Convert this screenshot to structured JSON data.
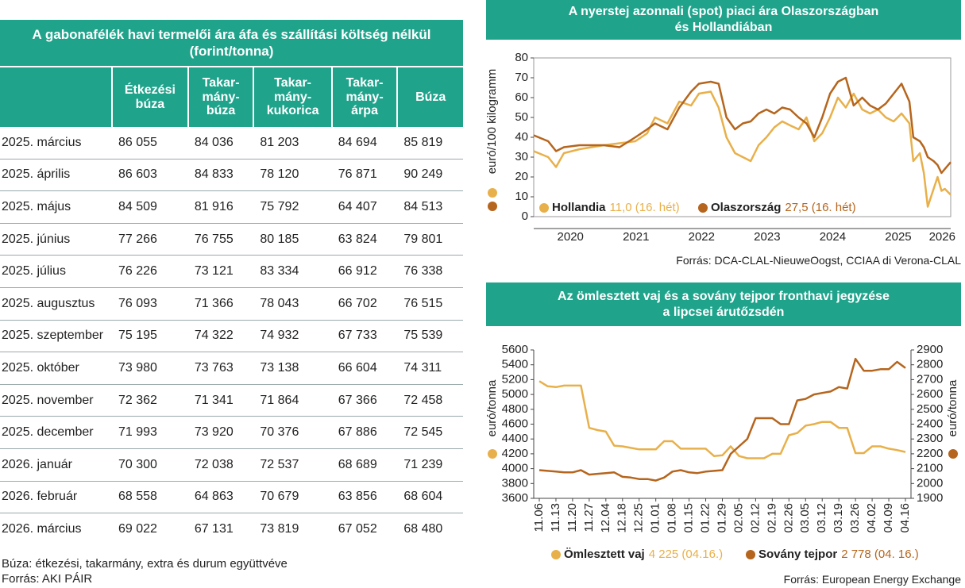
{
  "table": {
    "title": "A gabonafélék havi termelői ára áfa és szállítási költség nélkül (forint/tonna)",
    "columns": [
      "Étkezési\nbúza",
      "Takar-\nmány-\nbúza",
      "Takar-\nmány-\nkukorica",
      "Takar-\nmány-\nárpa",
      "Búza"
    ],
    "rows": [
      [
        "2025. március",
        "86 055",
        "84 036",
        "81 203",
        "84 694",
        "85 819"
      ],
      [
        "2025. április",
        "86 603",
        "84 833",
        "78 120",
        "76 871",
        "90 249"
      ],
      [
        "2025. május",
        "84 509",
        "81 916",
        "75 792",
        "64 407",
        "84 513"
      ],
      [
        "2025. június",
        "77 266",
        "76 755",
        "80 185",
        "63 824",
        "79 801"
      ],
      [
        "2025. július",
        "76 226",
        "73 121",
        "83 334",
        "66 912",
        "76 338"
      ],
      [
        "2025. augusztus",
        "76 093",
        "71 366",
        "78 043",
        "66 702",
        "76 515"
      ],
      [
        "2025. szeptember",
        "75 195",
        "74 322",
        "74 932",
        "67 733",
        "75 539"
      ],
      [
        "2025. október",
        "73 980",
        "73 763",
        "73 138",
        "66 604",
        "74 311"
      ],
      [
        "2025. november",
        "72 362",
        "71 341",
        "71 864",
        "67 366",
        "72 458"
      ],
      [
        "2025. december",
        "71 993",
        "73 920",
        "70 376",
        "67 886",
        "72 545"
      ],
      [
        "2026. január",
        "70 300",
        "72 038",
        "72 537",
        "68 689",
        "71 239"
      ],
      [
        "2026. február",
        "68 558",
        "64 863",
        "70 679",
        "63 856",
        "68 604"
      ],
      [
        "2026. március",
        "69 022",
        "67 131",
        "73 819",
        "67 052",
        "68 480"
      ]
    ],
    "notes": [
      "Búza: étkezési, takarmány, extra és durum együttvéve",
      "Forrás: AKI PÁIR"
    ]
  },
  "chart_data": [
    {
      "type": "line",
      "title": "A nyerstej azonnali (spot) piaci ára Olaszországban\nés Hollandiában",
      "y_label": "euró/100 kilogramm",
      "x": [
        2019.94,
        2020.16,
        2020.28,
        2020.4,
        2020.64,
        2021.01,
        2021.25,
        2021.49,
        2021.67,
        2021.79,
        2021.98,
        2022.16,
        2022.34,
        2022.46,
        2022.64,
        2022.76,
        2022.88,
        2023.01,
        2023.13,
        2023.25,
        2023.37,
        2023.49,
        2023.61,
        2023.73,
        2023.85,
        2023.98,
        2024.1,
        2024.22,
        2024.34,
        2024.46,
        2024.58,
        2024.7,
        2024.82,
        2024.95,
        2025.07,
        2025.19,
        2025.31,
        2025.43,
        2025.55,
        2025.67,
        2025.73,
        2025.83,
        2025.89,
        2025.95,
        2026.04,
        2026.1,
        2026.16,
        2026.21,
        2026.3
      ],
      "xlim": [
        2019.94,
        2026.3
      ],
      "xticks": [
        {
          "value": 2020.5,
          "label": "2020"
        },
        {
          "value": 2021.5,
          "label": "2021"
        },
        {
          "value": 2022.5,
          "label": "2022"
        },
        {
          "value": 2023.5,
          "label": "2023"
        },
        {
          "value": 2024.5,
          "label": "2024"
        },
        {
          "value": 2025.5,
          "label": "2025"
        },
        {
          "value": 2026.17,
          "label": "2026"
        }
      ],
      "ylim": [
        0,
        80
      ],
      "yticks": [
        0,
        10,
        20,
        30,
        40,
        50,
        60,
        70,
        80
      ],
      "series": [
        {
          "name": "Hollandia",
          "color": "#e8b04a",
          "latest": "11,0 (16. hét)",
          "values": [
            33,
            30,
            25,
            32,
            34,
            36,
            37,
            38,
            42,
            50,
            47,
            58,
            56,
            62,
            63,
            55,
            40,
            32,
            30,
            28,
            36,
            40,
            45,
            48,
            46,
            44,
            50,
            38,
            42,
            50,
            60,
            55,
            62,
            54,
            52,
            54,
            50,
            48,
            52,
            47,
            28,
            32,
            22,
            5,
            14,
            20,
            13,
            14,
            11
          ]
        },
        {
          "name": "Olaszország",
          "color": "#b5651d",
          "latest": "27,5 (16. hét)",
          "values": [
            41,
            38,
            33,
            35,
            36,
            36,
            35,
            40,
            44,
            47,
            44,
            55,
            63,
            67,
            68,
            67,
            50,
            44,
            47,
            48,
            52,
            54,
            52,
            55,
            54,
            50,
            47,
            40,
            50,
            62,
            68,
            70,
            56,
            60,
            56,
            54,
            57,
            62,
            67,
            58,
            40,
            38,
            35,
            30,
            28,
            26,
            22,
            24,
            27.5
          ]
        }
      ],
      "source": "Forrás: DCA-CLAL-NieuweOogst, CCIAA di Verona-CLAL"
    },
    {
      "type": "line",
      "title": "Az ömlesztett vaj és a sovány tejpor fronthavi jegyzése\na lipcsei árutőzsdén",
      "y_label": "euró/tonna",
      "y2_label": "euró/tonna",
      "categories": [
        "11.06",
        null,
        "11.13",
        null,
        "11.20",
        null,
        "11.27",
        null,
        "12.04",
        null,
        "12.18",
        null,
        "12.25",
        null,
        "01.01",
        null,
        "01.08",
        null,
        "01.15",
        null,
        "01.22",
        null,
        "01.29",
        null,
        "02.05",
        null,
        "02.12",
        null,
        "02.19",
        null,
        "02.26",
        null,
        "03.05",
        null,
        "03.12",
        null,
        "03.19",
        null,
        "03.26",
        null,
        "04.02",
        null,
        "04.09",
        null,
        "04.16"
      ],
      "ylim": [
        3600,
        5600
      ],
      "yticks": [
        3600,
        3800,
        4000,
        4200,
        4400,
        4600,
        4800,
        5000,
        5200,
        5400,
        5600
      ],
      "y2lim": [
        1900,
        2900
      ],
      "y2ticks": [
        1900,
        2000,
        2100,
        2200,
        2300,
        2400,
        2500,
        2600,
        2700,
        2800,
        2900
      ],
      "series": [
        {
          "name": "Ömlesztett vaj",
          "color": "#e8b04a",
          "latest": "4 225 (04.16.)",
          "values": [
            5180,
            5110,
            5100,
            5120,
            5120,
            5120,
            4550,
            4520,
            4500,
            4310,
            4300,
            4280,
            4260,
            4260,
            4260,
            4370,
            4370,
            4270,
            4270,
            4270,
            4270,
            4170,
            4180,
            4300,
            4170,
            4140,
            4140,
            4140,
            4200,
            4200,
            4450,
            4480,
            4580,
            4600,
            4630,
            4630,
            4550,
            4550,
            4210,
            4210,
            4300,
            4300,
            4270,
            4250,
            4225
          ]
        },
        {
          "name": "Sovány tejpor",
          "color": "#b5651d",
          "axis": "y2",
          "latest": "2 778 (04. 16.)",
          "values": [
            2090,
            2085,
            2080,
            2075,
            2075,
            2090,
            2060,
            2065,
            2070,
            2075,
            2045,
            2040,
            2030,
            2030,
            2020,
            2040,
            2080,
            2090,
            2075,
            2070,
            2080,
            2085,
            2090,
            2200,
            2250,
            2300,
            2440,
            2440,
            2440,
            2400,
            2400,
            2560,
            2570,
            2600,
            2610,
            2620,
            2650,
            2640,
            2840,
            2760,
            2760,
            2770,
            2770,
            2820,
            2778
          ]
        }
      ],
      "source": "Forrás: European Energy Exchange"
    }
  ]
}
